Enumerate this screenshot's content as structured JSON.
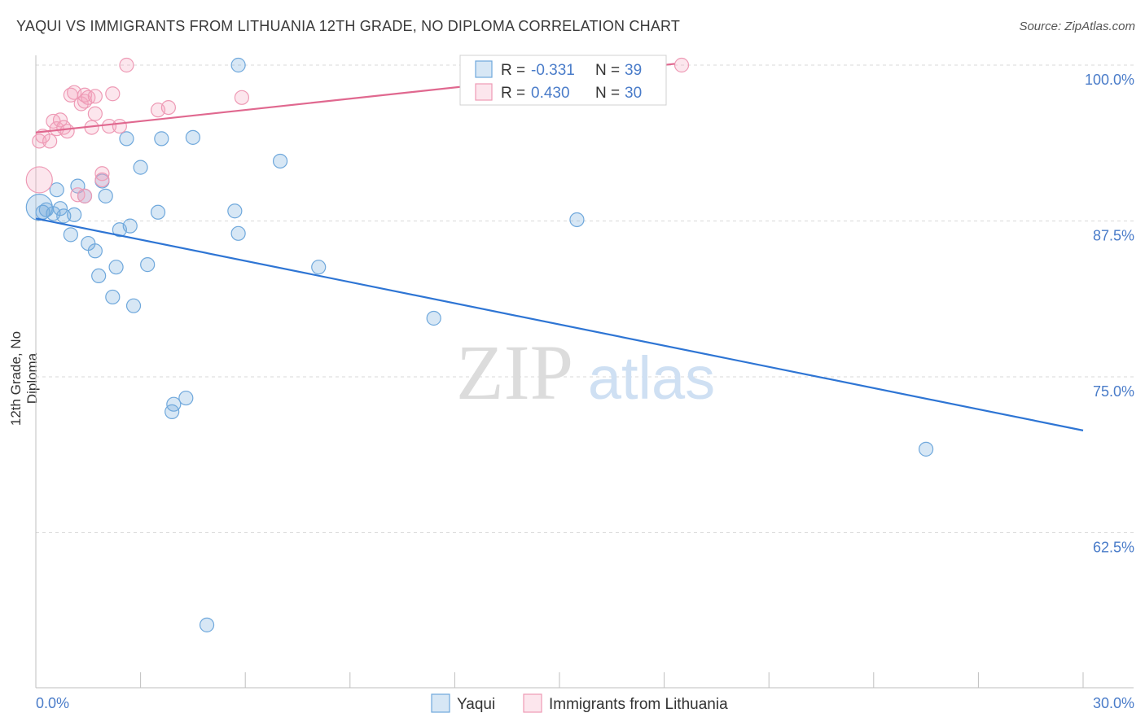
{
  "title": "YAQUI VS IMMIGRANTS FROM LITHUANIA 12TH GRADE, NO DIPLOMA CORRELATION CHART",
  "source": "Source: ZipAtlas.com",
  "watermark": {
    "zip": "ZIP",
    "atlas": "atlas"
  },
  "colors": {
    "blue": "#6fa8dc",
    "blue_line": "#2e75d4",
    "pink": "#f4a6bf",
    "pink_line": "#e0688f",
    "tick_label": "#4a7cc9"
  },
  "legend_box": {
    "rows": [
      {
        "r_label": "R = ",
        "r_value": "-0.331",
        "n_label": "N = ",
        "n_value": "39"
      },
      {
        "r_label": "R = ",
        "r_value": "0.430",
        "n_label": "N = ",
        "n_value": "30"
      }
    ]
  },
  "chart_data": {
    "type": "scatter",
    "xlabel": "",
    "ylabel": "12th Grade, No Diploma",
    "xlim": [
      0,
      30
    ],
    "ylim": [
      50,
      101
    ],
    "x_tick_labels": [
      "0.0%",
      "30.0%"
    ],
    "y_ticks": [
      100,
      87.5,
      75,
      62.5
    ],
    "y_tick_labels": [
      "100.0%",
      "87.5%",
      "75.0%",
      "62.5%"
    ],
    "grid": true,
    "legend_position": "bottom-center",
    "series": [
      {
        "name": "Yaqui",
        "color": "#6fa8dc",
        "trend": {
          "x": [
            0,
            30
          ],
          "y": [
            87.7,
            70.7
          ]
        },
        "points": [
          [
            0.1,
            88.6
          ],
          [
            0.2,
            88.2
          ],
          [
            0.3,
            88.4
          ],
          [
            0.5,
            88.1
          ],
          [
            0.6,
            90.0
          ],
          [
            0.7,
            88.5
          ],
          [
            0.8,
            87.9
          ],
          [
            1.0,
            86.4
          ],
          [
            1.1,
            88.0
          ],
          [
            1.2,
            90.3
          ],
          [
            1.4,
            89.5
          ],
          [
            1.5,
            85.7
          ],
          [
            1.7,
            85.1
          ],
          [
            1.8,
            83.1
          ],
          [
            1.9,
            90.7
          ],
          [
            2.0,
            89.5
          ],
          [
            2.2,
            81.4
          ],
          [
            2.3,
            83.8
          ],
          [
            2.4,
            86.8
          ],
          [
            2.6,
            94.1
          ],
          [
            2.7,
            87.1
          ],
          [
            2.8,
            80.7
          ],
          [
            3.0,
            91.8
          ],
          [
            3.2,
            84.0
          ],
          [
            3.5,
            88.2
          ],
          [
            3.6,
            94.1
          ],
          [
            3.9,
            72.2
          ],
          [
            3.95,
            72.8
          ],
          [
            4.3,
            73.3
          ],
          [
            4.5,
            94.2
          ],
          [
            4.9,
            55.1
          ],
          [
            5.7,
            88.3
          ],
          [
            5.8,
            86.5
          ],
          [
            5.8,
            100.0
          ],
          [
            7.0,
            92.3
          ],
          [
            8.1,
            83.8
          ],
          [
            11.4,
            79.7
          ],
          [
            15.5,
            87.6
          ],
          [
            25.5,
            69.2
          ]
        ]
      },
      {
        "name": "Immigrants from Lithuania",
        "color": "#f4a6bf",
        "trend": {
          "x": [
            0,
            18.3
          ],
          "y": [
            94.6,
            100.1
          ]
        },
        "points": [
          [
            0.1,
            93.9
          ],
          [
            0.1,
            90.8
          ],
          [
            0.2,
            94.3
          ],
          [
            0.4,
            93.9
          ],
          [
            0.5,
            95.5
          ],
          [
            0.6,
            94.9
          ],
          [
            0.7,
            95.6
          ],
          [
            0.8,
            95.0
          ],
          [
            0.9,
            94.7
          ],
          [
            1.0,
            97.6
          ],
          [
            1.1,
            97.8
          ],
          [
            1.2,
            89.6
          ],
          [
            1.3,
            96.9
          ],
          [
            1.4,
            89.5
          ],
          [
            1.4,
            97.1
          ],
          [
            1.4,
            97.6
          ],
          [
            1.5,
            97.4
          ],
          [
            1.6,
            95.0
          ],
          [
            1.7,
            96.1
          ],
          [
            1.7,
            97.5
          ],
          [
            1.9,
            91.3
          ],
          [
            1.9,
            90.8
          ],
          [
            2.1,
            95.1
          ],
          [
            2.2,
            97.7
          ],
          [
            2.4,
            95.1
          ],
          [
            2.6,
            100.0
          ],
          [
            3.5,
            96.4
          ],
          [
            3.8,
            96.6
          ],
          [
            5.9,
            97.4
          ],
          [
            18.5,
            100.0
          ]
        ]
      }
    ]
  }
}
